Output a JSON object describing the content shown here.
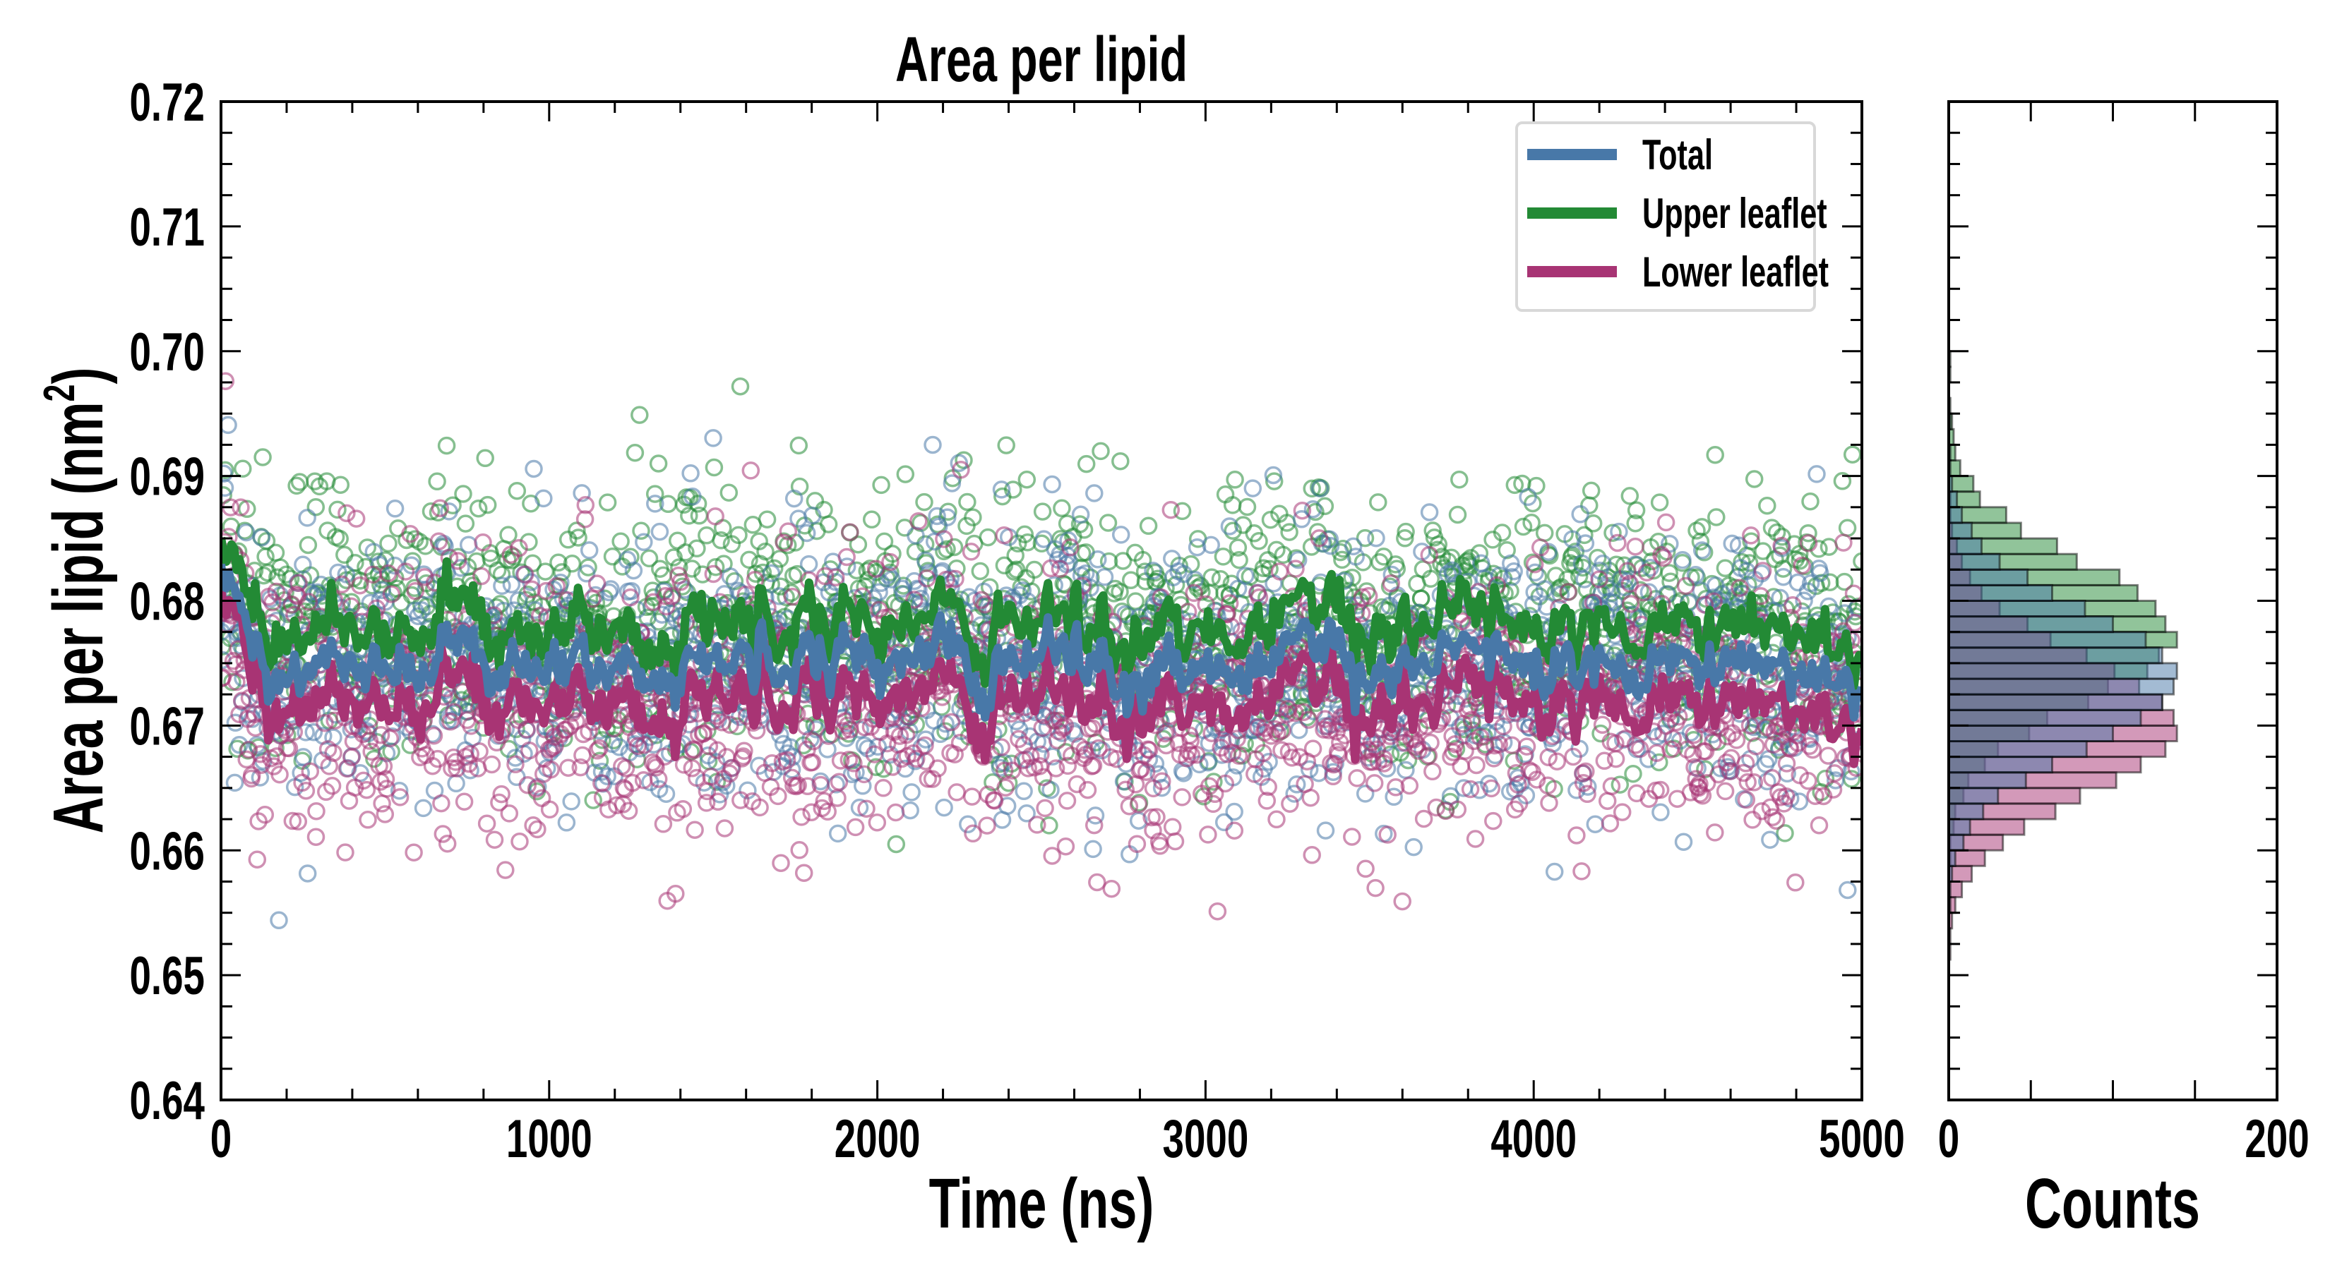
{
  "chart_data": [
    {
      "type": "line+scatter",
      "title": "Area per lipid",
      "xlabel": "Time (ns)",
      "ylabel": "Area per lipid (nm",
      "ylabel_sup": "2",
      "ylabel_close": ")",
      "xlim": [
        0,
        5000
      ],
      "ylim": [
        0.64,
        0.72
      ],
      "xticks": [
        "0",
        "1000",
        "2000",
        "3000",
        "4000",
        "5000"
      ],
      "yticks": [
        "0.64",
        "0.65",
        "0.66",
        "0.67",
        "0.68",
        "0.69",
        "0.70",
        "0.71",
        "0.72"
      ],
      "grid": false,
      "legend_position": "top-right",
      "x_step_ns": 100,
      "series": [
        {
          "name": "Total",
          "color": "#4878a8",
          "values": [
            0.683,
            0.6745,
            0.674,
            0.675,
            0.6755,
            0.6748,
            0.6752,
            0.676,
            0.6745,
            0.675,
            0.6742,
            0.6755,
            0.6738,
            0.6748,
            0.6752,
            0.674,
            0.6758,
            0.6745,
            0.675,
            0.6755,
            0.6748,
            0.6745,
            0.6775,
            0.6742,
            0.6738,
            0.6752,
            0.6768,
            0.674,
            0.6735,
            0.6745,
            0.6742,
            0.6748,
            0.675,
            0.6765,
            0.6752,
            0.6735,
            0.6745,
            0.6755,
            0.6758,
            0.676,
            0.6748,
            0.6752,
            0.6745,
            0.6748,
            0.6752,
            0.6745,
            0.6755,
            0.6748,
            0.6742,
            0.6745,
            0.674
          ]
        },
        {
          "name": "Upper leaflet",
          "color": "#238a35",
          "values": [
            0.685,
            0.6772,
            0.677,
            0.678,
            0.6785,
            0.6775,
            0.6782,
            0.679,
            0.6772,
            0.6778,
            0.677,
            0.6785,
            0.6768,
            0.6776,
            0.6782,
            0.677,
            0.6788,
            0.6774,
            0.678,
            0.6785,
            0.6776,
            0.6774,
            0.6805,
            0.6772,
            0.6768,
            0.6782,
            0.6798,
            0.677,
            0.6764,
            0.6775,
            0.6772,
            0.6778,
            0.678,
            0.6795,
            0.6782,
            0.6765,
            0.6775,
            0.6785,
            0.6788,
            0.679,
            0.6778,
            0.6782,
            0.6775,
            0.6778,
            0.6782,
            0.6775,
            0.6785,
            0.6778,
            0.6772,
            0.6775,
            0.677
          ]
        },
        {
          "name": "Lower leaflet",
          "color": "#a83474",
          "values": [
            0.681,
            0.6718,
            0.6712,
            0.672,
            0.6726,
            0.672,
            0.6722,
            0.673,
            0.6716,
            0.6722,
            0.6714,
            0.6725,
            0.6708,
            0.672,
            0.6722,
            0.6712,
            0.6728,
            0.6716,
            0.672,
            0.6725,
            0.672,
            0.6716,
            0.6745,
            0.6712,
            0.6708,
            0.6722,
            0.6738,
            0.671,
            0.6706,
            0.6715,
            0.6712,
            0.6718,
            0.672,
            0.6735,
            0.6722,
            0.6705,
            0.6715,
            0.6725,
            0.6728,
            0.673,
            0.6718,
            0.6722,
            0.6715,
            0.6718,
            0.6722,
            0.6715,
            0.6725,
            0.6718,
            0.6712,
            0.6715,
            0.671
          ]
        }
      ],
      "scatter": {
        "n_points_per_series": 1500,
        "sd": 0.0055,
        "marker": "open-circle"
      }
    },
    {
      "type": "histogram",
      "orientation": "horizontal",
      "xlabel": "Counts",
      "xlim": [
        0,
        200
      ],
      "xticks": [
        "0",
        "200"
      ],
      "ylim": [
        0.64,
        0.72
      ],
      "bin_start": 0.65,
      "bin_width": 0.00125,
      "series": [
        {
          "name": "Upper leaflet",
          "color": "#238a35",
          "counts": [
            0,
            0,
            0,
            0,
            0,
            0,
            0,
            1,
            1,
            3,
            4,
            9,
            12,
            22,
            30,
            49,
            60,
            85,
            97,
            121,
            128,
            139,
            132,
            126,
            115,
            104,
            78,
            66,
            44,
            35,
            19,
            15,
            7,
            4,
            3,
            2,
            1,
            0,
            1,
            1
          ]
        },
        {
          "name": "Lower leaflet",
          "color": "#a83474",
          "counts": [
            0,
            1,
            1,
            2,
            4,
            8,
            14,
            22,
            33,
            46,
            65,
            80,
            102,
            117,
            132,
            139,
            137,
            130,
            116,
            101,
            84,
            62,
            48,
            31,
            20,
            13,
            8,
            5,
            2,
            1,
            1,
            0,
            0,
            0,
            0,
            0,
            0,
            0,
            0,
            0
          ]
        },
        {
          "name": "Total",
          "color": "#4878a8",
          "counts": [
            0,
            0,
            0,
            0,
            1,
            1,
            2,
            4,
            9,
            13,
            21,
            30,
            47,
            63,
            84,
            100,
            117,
            130,
            137,
            139,
            130,
            120,
            100,
            83,
            63,
            48,
            31,
            20,
            14,
            8,
            5,
            2,
            1,
            1,
            0,
            1,
            0,
            0,
            0,
            0
          ]
        }
      ]
    }
  ]
}
